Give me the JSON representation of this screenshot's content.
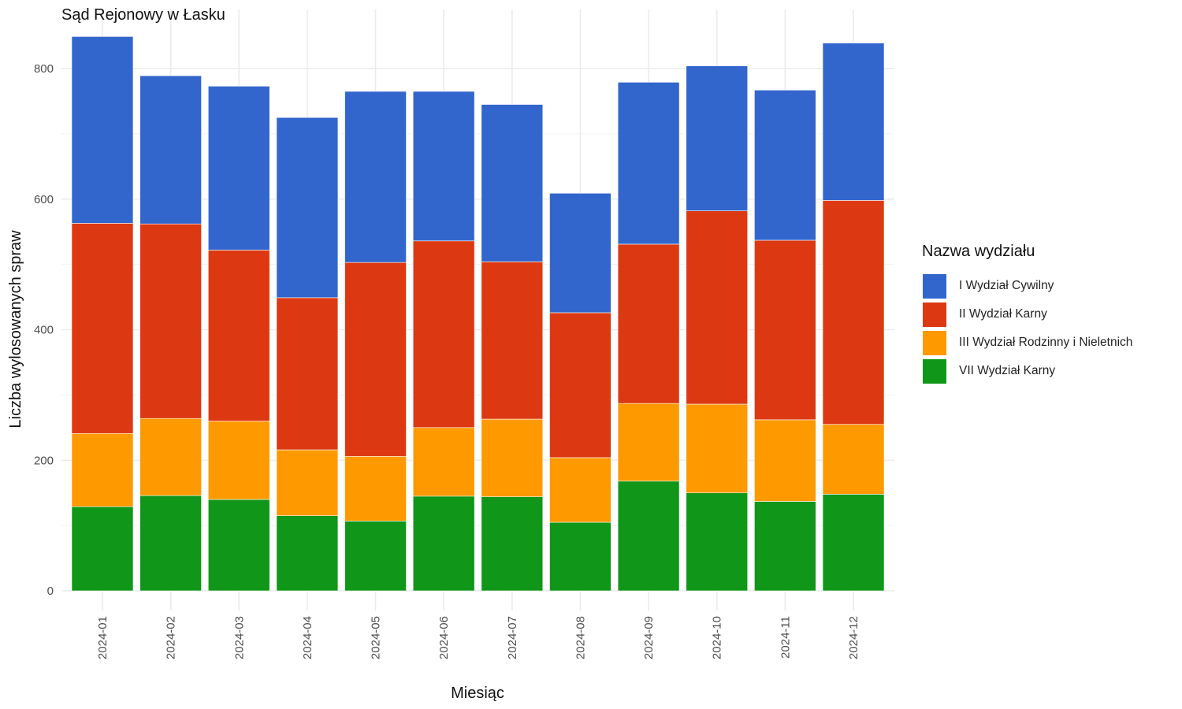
{
  "chart_data": {
    "type": "bar",
    "stacked": true,
    "title": "Sąd Rejonowy w Łasku",
    "xlabel": "Miesiąc",
    "ylabel": "Liczba wylosowanych spraw",
    "ylim": [
      0,
      850
    ],
    "yticks": [
      0,
      200,
      400,
      600,
      800
    ],
    "grid": true,
    "legend_title": "Nazwa wydziału",
    "legend_position": "right",
    "categories": [
      "2024-01",
      "2024-02",
      "2024-03",
      "2024-04",
      "2024-05",
      "2024-06",
      "2024-07",
      "2024-08",
      "2024-09",
      "2024-10",
      "2024-11",
      "2024-12"
    ],
    "series": [
      {
        "name": "VII Wydział Karny",
        "color": "#109618",
        "values": [
          129,
          146,
          140,
          115,
          107,
          145,
          144,
          105,
          168,
          150,
          137,
          148
        ]
      },
      {
        "name": "III Wydział Rodzinny i Nieletnich",
        "color": "#ff9900",
        "values": [
          112,
          118,
          120,
          101,
          99,
          105,
          119,
          99,
          119,
          136,
          125,
          107
        ]
      },
      {
        "name": "II Wydział Karny",
        "color": "#dc3912",
        "values": [
          322,
          298,
          262,
          233,
          297,
          286,
          241,
          222,
          244,
          296,
          275,
          343
        ]
      },
      {
        "name": "I Wydział Cywilny",
        "color": "#3366cc",
        "values": [
          286,
          227,
          251,
          276,
          262,
          229,
          241,
          183,
          248,
          222,
          230,
          241
        ]
      }
    ]
  }
}
